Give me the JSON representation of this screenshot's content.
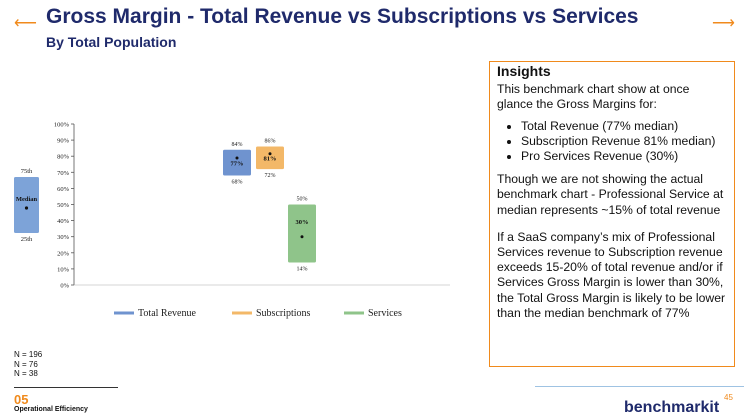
{
  "header": {
    "title": "Gross Margin - Total Revenue vs Subscriptions vs Services",
    "subtitle": "By Total Population",
    "left_arrow": "⟵",
    "right_arrow": "⟶"
  },
  "legend_key": {
    "p75": "75th",
    "median": "Median",
    "p25": "25th"
  },
  "insights": {
    "heading": "Insights",
    "intro": "This benchmark chart show at once glance the Gross Margins for:",
    "bullets": [
      "Total Revenue (77% median)",
      "Subscription Revenue 81% median)",
      "Pro Services Revenue (30%)"
    ],
    "para2": "Though we are not showing the actual benchmark chart - Professional Service at median represents ~15% of total revenue",
    "para3": "If a SaaS company’s mix of Professional Services revenue to Subscription revenue exceeds 15-20% of total revenue and/or if Services Gross Margin is lower than 30%, the Total Gross Margin is likely to be lower than the median benchmark  of 77%"
  },
  "footer": {
    "n_lines": [
      "N = 196",
      "N = 76",
      "N = 38"
    ],
    "section_number": "05",
    "section_name": "Operational Efficiency",
    "page_number": "45",
    "brand": "benchmarkit"
  },
  "colors": {
    "title": "#1f2a6b",
    "accent": "#f08a1c",
    "total_revenue": "#6f93cf",
    "subscriptions": "#f3b868",
    "services": "#8fc48a",
    "key_box": "#7da3d8"
  },
  "chart_data": {
    "type": "box",
    "title": "",
    "ylabel": "",
    "xlabel": "",
    "ylim": [
      0,
      100
    ],
    "yticks": [
      "0%",
      "10%",
      "20%",
      "30%",
      "40%",
      "50%",
      "60%",
      "70%",
      "80%",
      "90%",
      "100%"
    ],
    "grid": false,
    "legend_position": "bottom",
    "series": [
      {
        "name": "Total Revenue",
        "p25": 68,
        "median": 77,
        "p75": 84,
        "labels": {
          "p25": "68%",
          "median": "77%",
          "p75": "84%"
        }
      },
      {
        "name": "Subscriptions",
        "p25": 72,
        "median": 81,
        "p75": 86,
        "labels": {
          "p25": "72%",
          "median": "81%",
          "p75": "86%"
        }
      },
      {
        "name": "Services",
        "p25": 14,
        "median": 30,
        "p75": 50,
        "labels": {
          "p25": "14%",
          "median": "30%",
          "p75": "50%"
        }
      }
    ]
  }
}
